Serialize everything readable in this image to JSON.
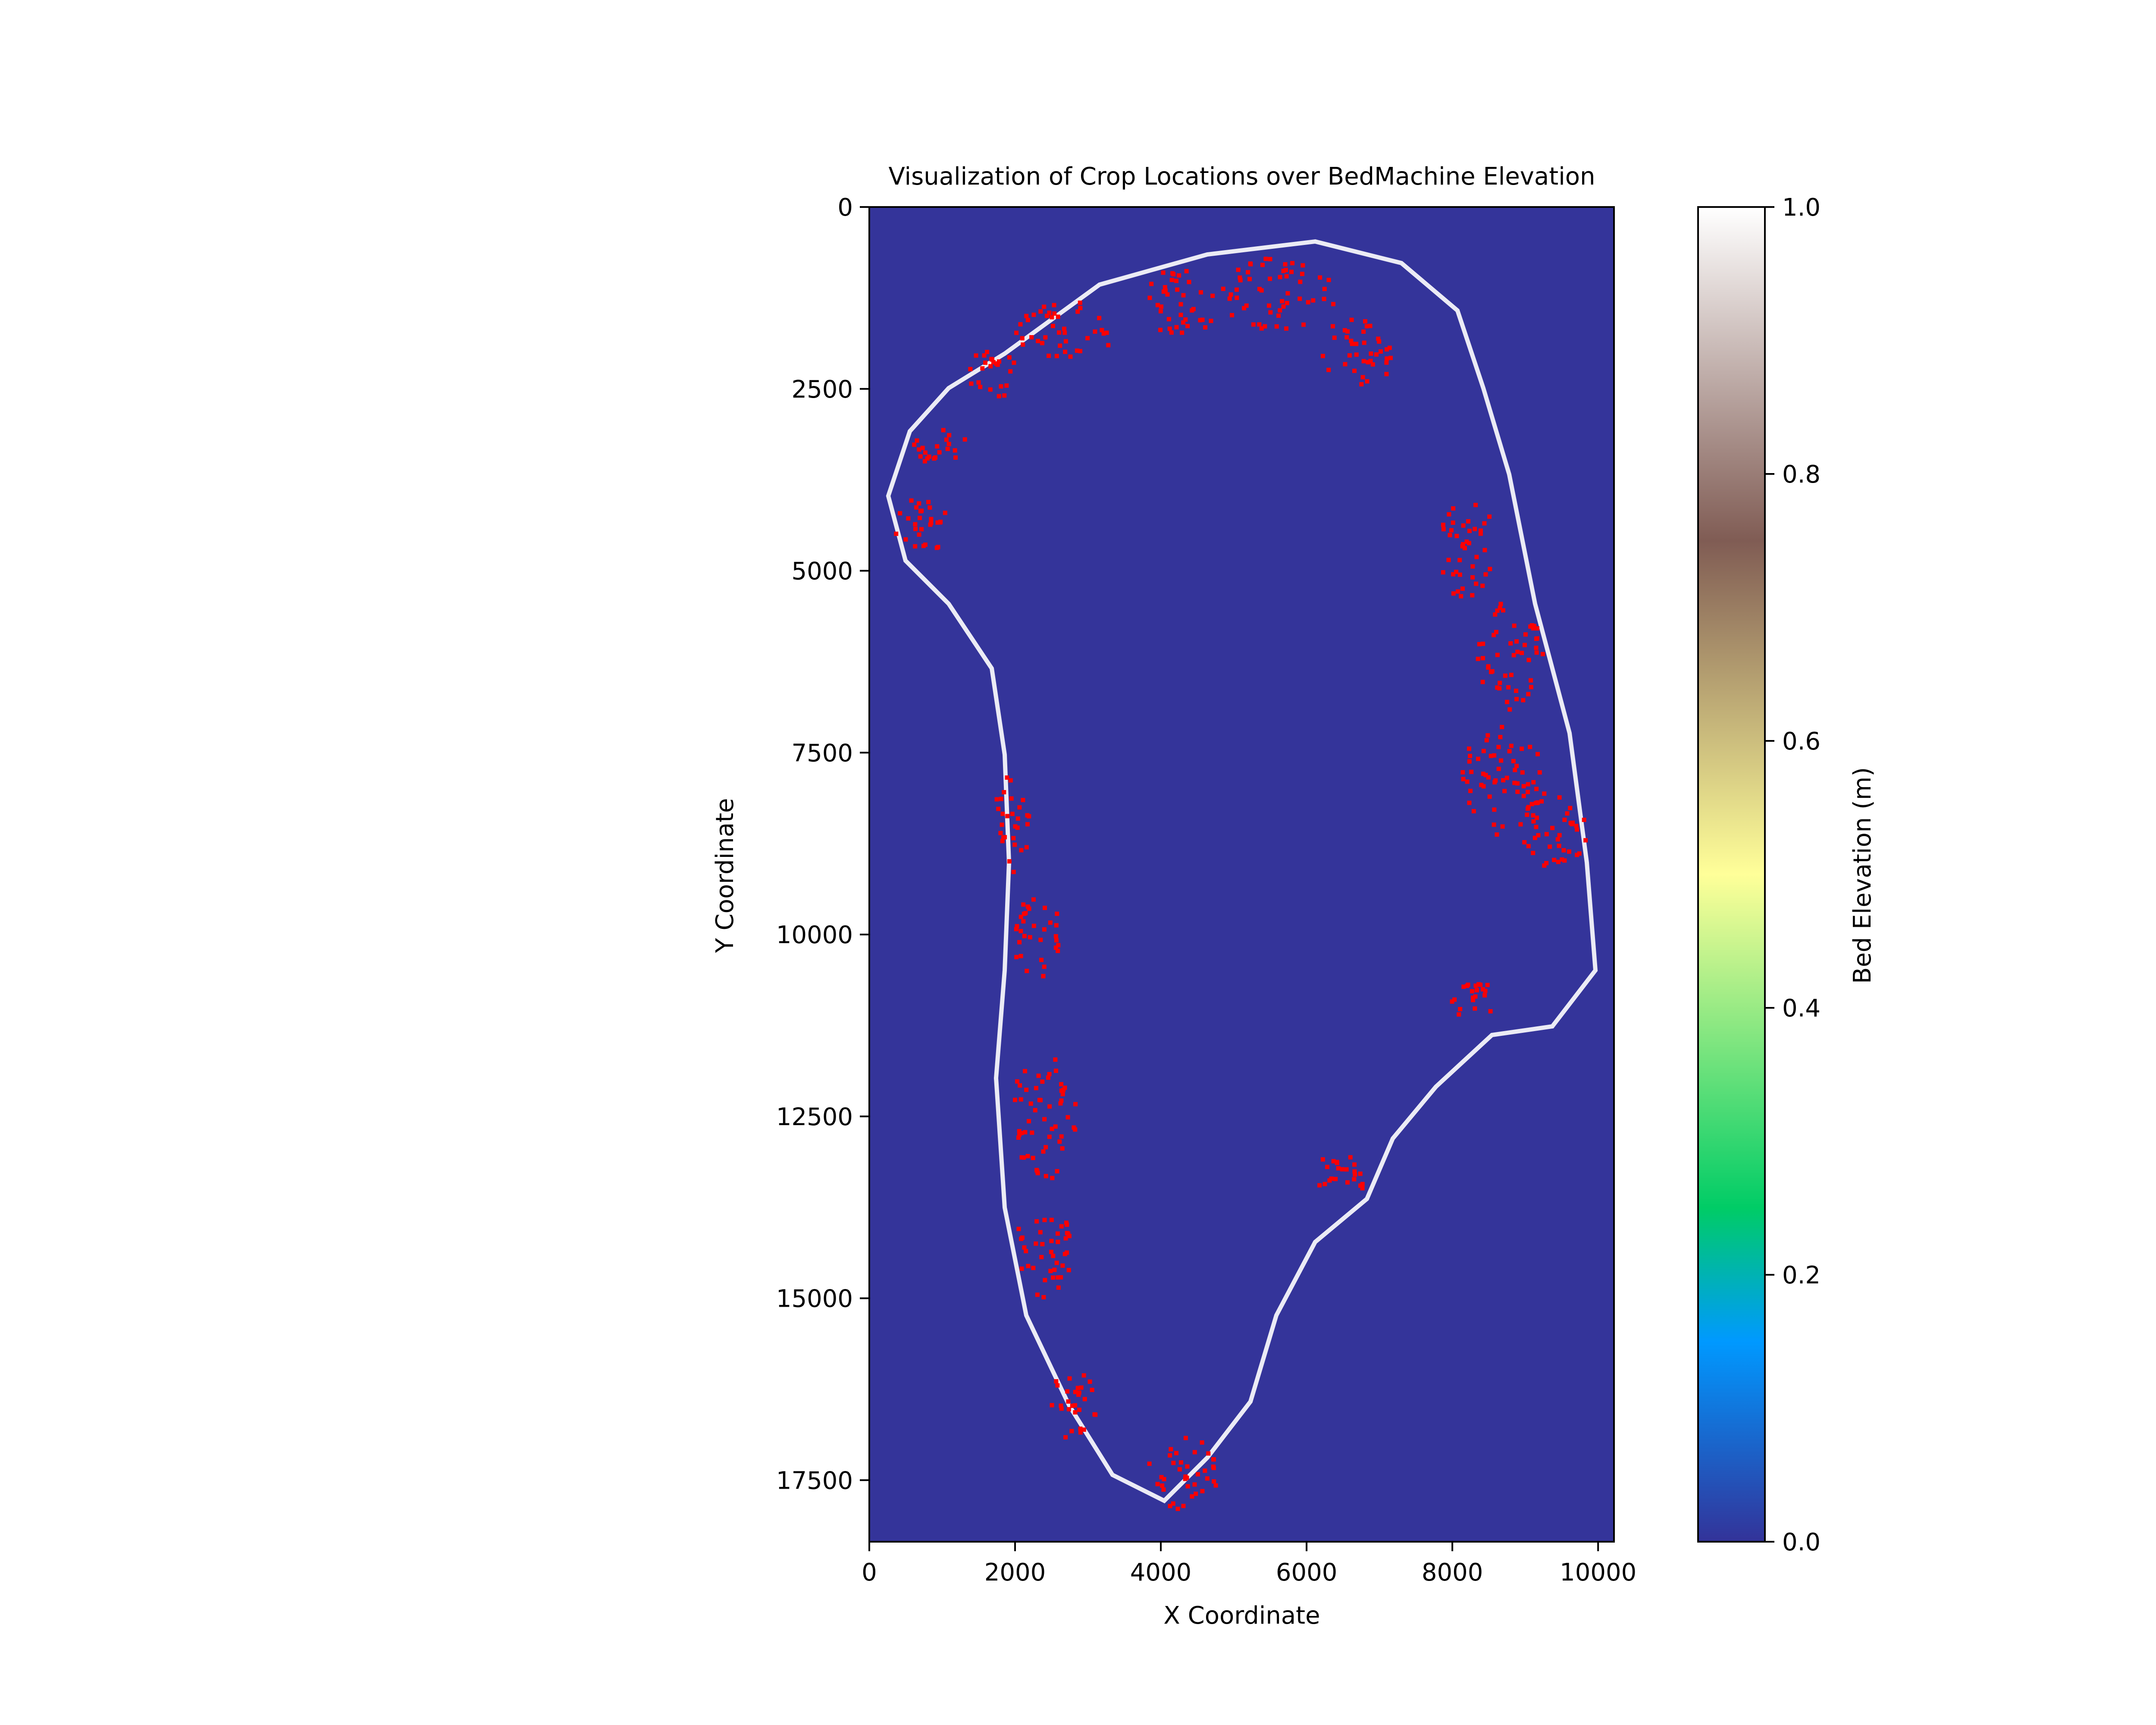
{
  "chart_data": {
    "type": "heatmap",
    "title": "Visualization of Crop Locations over BedMachine Elevation",
    "xlabel": "X Coordinate",
    "ylabel": "Y Coordinate",
    "xlim": [
      0,
      10218
    ],
    "ylim": [
      18346,
      0
    ],
    "x_ticks": [
      0,
      2000,
      4000,
      6000,
      8000,
      10000
    ],
    "y_ticks": [
      0,
      2500,
      5000,
      7500,
      10000,
      12500,
      15000,
      17500
    ],
    "colors": {
      "background": "#34349a",
      "ice_sheet_outline": "#ffffff",
      "crop_markers": "#ff0000"
    },
    "colorbar": {
      "label": "Bed Elevation (m)",
      "range": [
        0.0,
        1.0
      ],
      "tick_labels": [
        "0.0",
        "0.2",
        "0.4",
        "0.6",
        "0.8",
        "1.0"
      ],
      "colormap": "terrain",
      "stops": [
        {
          "v": 0.0,
          "color": "#333399"
        },
        {
          "v": 0.15,
          "color": "#0099ff"
        },
        {
          "v": 0.25,
          "color": "#00cc66"
        },
        {
          "v": 0.5,
          "color": "#ffff99"
        },
        {
          "v": 0.75,
          "color": "#805c54"
        },
        {
          "v": 1.0,
          "color": "#ffffff"
        }
      ]
    },
    "crop_regions": [
      {
        "x": 1700,
        "y": 2300,
        "rx": 350,
        "ry": 350
      },
      {
        "x": 2700,
        "y": 1700,
        "rx": 700,
        "ry": 400
      },
      {
        "x": 4300,
        "y": 1300,
        "rx": 500,
        "ry": 500
      },
      {
        "x": 5600,
        "y": 1200,
        "rx": 800,
        "ry": 500
      },
      {
        "x": 6700,
        "y": 2000,
        "rx": 500,
        "ry": 500
      },
      {
        "x": 1000,
        "y": 3300,
        "rx": 400,
        "ry": 250
      },
      {
        "x": 700,
        "y": 4400,
        "rx": 400,
        "ry": 400
      },
      {
        "x": 8200,
        "y": 4700,
        "rx": 400,
        "ry": 700
      },
      {
        "x": 8800,
        "y": 6200,
        "rx": 450,
        "ry": 800
      },
      {
        "x": 8700,
        "y": 7900,
        "rx": 600,
        "ry": 800
      },
      {
        "x": 9400,
        "y": 8600,
        "rx": 500,
        "ry": 500
      },
      {
        "x": 1950,
        "y": 8500,
        "rx": 250,
        "ry": 700
      },
      {
        "x": 2300,
        "y": 10000,
        "rx": 350,
        "ry": 600
      },
      {
        "x": 2400,
        "y": 12500,
        "rx": 450,
        "ry": 900
      },
      {
        "x": 2400,
        "y": 14300,
        "rx": 400,
        "ry": 700
      },
      {
        "x": 2800,
        "y": 16500,
        "rx": 350,
        "ry": 500
      },
      {
        "x": 4300,
        "y": 17400,
        "rx": 500,
        "ry": 500
      },
      {
        "x": 6500,
        "y": 13300,
        "rx": 400,
        "ry": 300
      },
      {
        "x": 8300,
        "y": 10900,
        "rx": 400,
        "ry": 250
      }
    ]
  }
}
